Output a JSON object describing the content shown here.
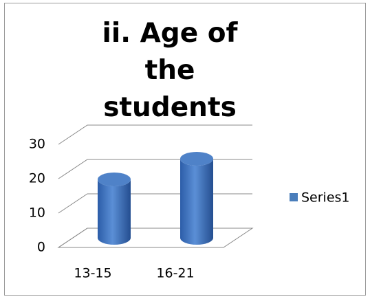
{
  "chart_data": {
    "type": "bar3d",
    "title": "ii. Age of the students",
    "categories": [
      "13-15",
      "16-21"
    ],
    "series": [
      {
        "name": "Series1",
        "color": "#4a7ebb",
        "values": [
          17,
          23
        ]
      }
    ],
    "ylim": [
      0,
      30
    ],
    "yticks": [
      0,
      10,
      20,
      30
    ],
    "grid": true,
    "legend": "right"
  }
}
